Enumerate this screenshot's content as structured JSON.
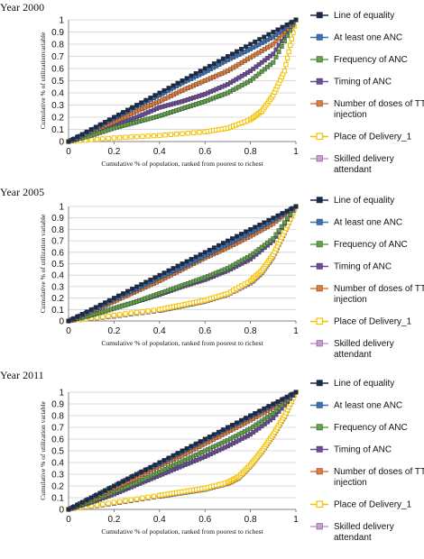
{
  "chart_data": [
    {
      "type": "line",
      "title": "Year 2000",
      "xlabel": "Cumulative % of population, ranked from poorest to richest",
      "ylabel": "Cumulative % of utilizationvariable",
      "xlim": [
        0,
        1
      ],
      "ylim": [
        0,
        1
      ],
      "x_ticks": [
        "0",
        "0.2",
        "0.4",
        "0.6",
        "0.8",
        "1"
      ],
      "y_ticks": [
        "0",
        "0.1",
        "0.2",
        "0.3",
        "0.4",
        "0.5",
        "0.6",
        "0.7",
        "0.8",
        "0.9",
        "1"
      ],
      "grid": true,
      "legend_position": "right",
      "series": [
        {
          "name": "Line of equality",
          "color": "#1a2a4a",
          "marker": "square",
          "x": [
            0,
            0.2,
            0.4,
            0.6,
            0.8,
            1
          ],
          "y": [
            0,
            0.2,
            0.4,
            0.6,
            0.8,
            1
          ]
        },
        {
          "name": "At least one ANC",
          "color": "#3b6fb6",
          "marker": "square",
          "x": [
            0,
            0.1,
            0.2,
            0.3,
            0.4,
            0.5,
            0.6,
            0.7,
            0.8,
            0.9,
            1
          ],
          "y": [
            0,
            0.09,
            0.19,
            0.29,
            0.38,
            0.48,
            0.57,
            0.67,
            0.76,
            0.86,
            1
          ]
        },
        {
          "name": "Frequency of ANC",
          "color": "#5fa24a",
          "marker": "square",
          "x": [
            0,
            0.1,
            0.2,
            0.3,
            0.4,
            0.5,
            0.6,
            0.7,
            0.8,
            0.9,
            1
          ],
          "y": [
            0,
            0.05,
            0.11,
            0.16,
            0.21,
            0.27,
            0.33,
            0.4,
            0.5,
            0.65,
            1
          ]
        },
        {
          "name": "Timing of ANC",
          "color": "#6b4c9a",
          "marker": "square",
          "x": [
            0,
            0.1,
            0.2,
            0.3,
            0.4,
            0.5,
            0.6,
            0.7,
            0.8,
            0.9,
            1
          ],
          "y": [
            0,
            0.06,
            0.13,
            0.2,
            0.28,
            0.33,
            0.39,
            0.47,
            0.58,
            0.72,
            1
          ]
        },
        {
          "name": "Number of doses of TT injection",
          "color": "#e07b39",
          "marker": "square",
          "x": [
            0,
            0.1,
            0.2,
            0.3,
            0.4,
            0.5,
            0.6,
            0.7,
            0.8,
            0.9,
            1
          ],
          "y": [
            0,
            0.08,
            0.16,
            0.25,
            0.33,
            0.42,
            0.5,
            0.58,
            0.69,
            0.8,
            1
          ]
        },
        {
          "name": "Place of Delivery_1",
          "color": "#f2c200",
          "marker": "square-open",
          "x": [
            0,
            0.2,
            0.4,
            0.6,
            0.7,
            0.8,
            0.85,
            0.9,
            0.95,
            1
          ],
          "y": [
            0,
            0.03,
            0.05,
            0.08,
            0.11,
            0.18,
            0.25,
            0.38,
            0.58,
            1
          ]
        },
        {
          "name": "Skilled delivery attendant",
          "color": "#c99bd3",
          "marker": "square",
          "x": [
            0,
            0.2,
            0.4,
            0.6,
            0.7,
            0.8,
            0.85,
            0.9,
            0.95,
            1
          ],
          "y": [
            0,
            0.03,
            0.05,
            0.08,
            0.11,
            0.18,
            0.25,
            0.38,
            0.58,
            1
          ]
        }
      ]
    },
    {
      "type": "line",
      "title": "Year 2005",
      "xlabel": "Cumulative % of population, ranked from poorest to richest",
      "ylabel": "Cumulative % of utilization variable",
      "xlim": [
        0,
        1
      ],
      "ylim": [
        0,
        1
      ],
      "x_ticks": [
        "0",
        "0.2",
        "0.4",
        "0.6",
        "0.8",
        "1"
      ],
      "y_ticks": [
        "0",
        "0.1",
        "0.2",
        "0.3",
        "0.4",
        "0.5",
        "0.6",
        "0.7",
        "0.8",
        "0.9",
        "1"
      ],
      "grid": true,
      "legend_position": "right",
      "series": [
        {
          "name": "Line of equality",
          "color": "#1a2a4a",
          "marker": "square",
          "x": [
            0,
            0.2,
            0.4,
            0.6,
            0.8,
            1
          ],
          "y": [
            0,
            0.2,
            0.4,
            0.6,
            0.8,
            1
          ]
        },
        {
          "name": "At least one ANC",
          "color": "#3b6fb6",
          "marker": "square",
          "x": [
            0,
            0.1,
            0.2,
            0.3,
            0.4,
            0.5,
            0.6,
            0.7,
            0.8,
            0.9,
            1
          ],
          "y": [
            0,
            0.09,
            0.19,
            0.28,
            0.38,
            0.47,
            0.57,
            0.67,
            0.77,
            0.88,
            1
          ]
        },
        {
          "name": "Frequency of ANC",
          "color": "#5fa24a",
          "marker": "square",
          "x": [
            0,
            0.1,
            0.2,
            0.3,
            0.4,
            0.5,
            0.6,
            0.7,
            0.8,
            0.9,
            1
          ],
          "y": [
            0,
            0.05,
            0.11,
            0.17,
            0.24,
            0.31,
            0.38,
            0.46,
            0.57,
            0.72,
            1
          ]
        },
        {
          "name": "Timing of ANC",
          "color": "#6b4c9a",
          "marker": "square",
          "x": [
            0,
            0.1,
            0.2,
            0.3,
            0.4,
            0.5,
            0.6,
            0.7,
            0.8,
            0.9,
            1
          ],
          "y": [
            0,
            0.05,
            0.11,
            0.17,
            0.23,
            0.3,
            0.36,
            0.44,
            0.54,
            0.7,
            1
          ]
        },
        {
          "name": "Number of doses of TT injection",
          "color": "#e07b39",
          "marker": "square",
          "x": [
            0,
            0.1,
            0.2,
            0.3,
            0.4,
            0.5,
            0.6,
            0.7,
            0.8,
            0.9,
            1
          ],
          "y": [
            0,
            0.08,
            0.17,
            0.26,
            0.35,
            0.45,
            0.55,
            0.64,
            0.74,
            0.85,
            1
          ]
        },
        {
          "name": "Place of Delivery_1",
          "color": "#f2c200",
          "marker": "square-open",
          "x": [
            0,
            0.2,
            0.4,
            0.5,
            0.6,
            0.7,
            0.8,
            0.85,
            0.9,
            0.95,
            1
          ],
          "y": [
            0,
            0.05,
            0.1,
            0.14,
            0.18,
            0.24,
            0.35,
            0.44,
            0.58,
            0.78,
            1
          ]
        },
        {
          "name": "Skilled delivery attendant",
          "color": "#c99bd3",
          "marker": "square",
          "x": [
            0,
            0.2,
            0.4,
            0.5,
            0.6,
            0.7,
            0.8,
            0.85,
            0.9,
            0.95,
            1
          ],
          "y": [
            0,
            0.04,
            0.09,
            0.13,
            0.17,
            0.23,
            0.33,
            0.42,
            0.56,
            0.77,
            1
          ]
        }
      ]
    },
    {
      "type": "line",
      "title": "Year 2011",
      "xlabel": "Cumulative % of population, ranked from poorest to richest",
      "ylabel": "Cumulative % of utilization variable",
      "xlim": [
        0,
        1
      ],
      "ylim": [
        0,
        1
      ],
      "x_ticks": [
        "0",
        "0.2",
        "0.4",
        "0.6",
        "0.8",
        "1"
      ],
      "y_ticks": [
        "0",
        "0.1",
        "0.2",
        "0.3",
        "0.4",
        "0.5",
        "0.6",
        "0.7",
        "0.8",
        "0.9",
        "1"
      ],
      "grid": true,
      "legend_position": "right",
      "series": [
        {
          "name": "Line of equality",
          "color": "#1a2a4a",
          "marker": "square",
          "x": [
            0,
            0.2,
            0.4,
            0.6,
            0.8,
            1
          ],
          "y": [
            0,
            0.2,
            0.4,
            0.6,
            0.8,
            1
          ]
        },
        {
          "name": "At least one ANC",
          "color": "#3b6fb6",
          "marker": "square",
          "x": [
            0,
            0.1,
            0.2,
            0.3,
            0.4,
            0.5,
            0.6,
            0.7,
            0.8,
            0.9,
            1
          ],
          "y": [
            0,
            0.1,
            0.2,
            0.3,
            0.39,
            0.49,
            0.59,
            0.69,
            0.79,
            0.89,
            1
          ]
        },
        {
          "name": "Frequency of ANC",
          "color": "#5fa24a",
          "marker": "square",
          "x": [
            0,
            0.1,
            0.2,
            0.3,
            0.4,
            0.5,
            0.6,
            0.7,
            0.8,
            0.9,
            1
          ],
          "y": [
            0,
            0.07,
            0.15,
            0.23,
            0.32,
            0.41,
            0.5,
            0.59,
            0.69,
            0.82,
            1
          ]
        },
        {
          "name": "Timing of ANC",
          "color": "#6b4c9a",
          "marker": "square",
          "x": [
            0,
            0.1,
            0.2,
            0.3,
            0.4,
            0.5,
            0.6,
            0.7,
            0.8,
            0.9,
            1
          ],
          "y": [
            0,
            0.06,
            0.13,
            0.21,
            0.29,
            0.37,
            0.45,
            0.54,
            0.64,
            0.78,
            1
          ]
        },
        {
          "name": "Number of doses of TT injection",
          "color": "#e07b39",
          "marker": "square",
          "x": [
            0,
            0.1,
            0.2,
            0.3,
            0.4,
            0.5,
            0.6,
            0.7,
            0.8,
            0.9,
            1
          ],
          "y": [
            0,
            0.09,
            0.18,
            0.27,
            0.37,
            0.46,
            0.56,
            0.66,
            0.76,
            0.87,
            1
          ]
        },
        {
          "name": "Place of Delivery_1",
          "color": "#f2c200",
          "marker": "square-open",
          "x": [
            0,
            0.2,
            0.4,
            0.5,
            0.6,
            0.7,
            0.75,
            0.8,
            0.85,
            0.9,
            0.95,
            1
          ],
          "y": [
            0,
            0.06,
            0.12,
            0.15,
            0.18,
            0.23,
            0.28,
            0.38,
            0.5,
            0.64,
            0.8,
            1
          ]
        },
        {
          "name": "Skilled delivery attendant",
          "color": "#c99bd3",
          "marker": "square",
          "x": [
            0,
            0.2,
            0.4,
            0.5,
            0.6,
            0.7,
            0.75,
            0.8,
            0.85,
            0.9,
            0.95,
            1
          ],
          "y": [
            0,
            0.05,
            0.11,
            0.14,
            0.17,
            0.22,
            0.27,
            0.37,
            0.49,
            0.63,
            0.79,
            1
          ]
        }
      ]
    }
  ]
}
